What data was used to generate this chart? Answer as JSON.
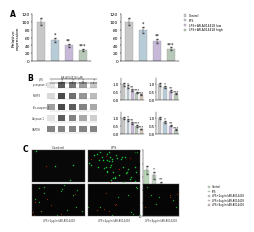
{
  "panel_A": {
    "left_chart": {
      "values": [
        100,
        55,
        40,
        28
      ],
      "colors": [
        "#c8c8c8",
        "#b8ccd8",
        "#c8b8d8",
        "#b8c8b8"
      ],
      "ylabel": "Relative expression",
      "ylim": [
        0,
        120
      ],
      "yticks": [
        0,
        20,
        40,
        60,
        80,
        100,
        120
      ],
      "legend": [
        "Control",
        "LPS",
        "LPS+AR-A014418 low",
        "LPS+AR-A014418 high"
      ]
    },
    "right_chart": {
      "values": [
        100,
        80,
        52,
        32
      ],
      "colors": [
        "#c8c8c8",
        "#b8ccd8",
        "#c8b8d8",
        "#b8c8b8"
      ],
      "ylim": [
        0,
        120
      ],
      "yticks": [
        0,
        20,
        40,
        60,
        80,
        100,
        120
      ]
    }
  },
  "panel_B": {
    "blot_labels": [
      "p-caspase-1",
      "NLRP3",
      "Pro-caspase-1",
      "Caspase-1",
      "GAPDH"
    ],
    "lane_header": [
      "LPS",
      "-",
      "+",
      "+",
      "+",
      "+"
    ],
    "lane_header2": [
      "AR-A014418 (uM)",
      "",
      "0",
      "1",
      "10",
      "t"
    ],
    "band_intensities": [
      [
        0.15,
        0.85,
        0.7,
        0.5,
        0.3
      ],
      [
        0.2,
        0.95,
        0.75,
        0.55,
        0.35
      ],
      [
        0.5,
        0.95,
        0.85,
        0.65,
        0.45
      ],
      [
        0.15,
        0.85,
        0.65,
        0.45,
        0.25
      ],
      [
        0.65,
        0.65,
        0.65,
        0.65,
        0.65
      ]
    ],
    "bar_charts": {
      "top_left": {
        "values": [
          1.0,
          0.85,
          0.65,
          0.45,
          0.32
        ],
        "colors": [
          "#c8c8c8",
          "#b8ccd8",
          "#c8b8d8",
          "#b8c8b8",
          "#d8c8b8"
        ],
        "ylim": [
          0,
          1.4
        ],
        "yticks": [
          0.0,
          0.5,
          1.0
        ]
      },
      "top_right": {
        "values": [
          1.0,
          0.8,
          0.58,
          0.38
        ],
        "colors": [
          "#c8c8c8",
          "#b8ccd8",
          "#c8b8d8",
          "#b8c8b8"
        ],
        "ylim": [
          0,
          1.4
        ],
        "yticks": [
          0.0,
          0.5,
          1.0
        ]
      },
      "bot_left": {
        "values": [
          1.0,
          0.88,
          0.7,
          0.5,
          0.3
        ],
        "colors": [
          "#c8c8c8",
          "#b8ccd8",
          "#c8b8d8",
          "#b8c8b8",
          "#d8c8b8"
        ],
        "ylim": [
          0,
          1.4
        ],
        "yticks": [
          0.0,
          0.5,
          1.0
        ]
      },
      "bot_right": {
        "values": [
          1.0,
          0.75,
          0.52,
          0.25
        ],
        "colors": [
          "#c8c8c8",
          "#b8ccd8",
          "#c8b8d8",
          "#b8c8b8"
        ],
        "ylim": [
          0,
          1.4
        ],
        "yticks": [
          0.0,
          0.5,
          1.0
        ]
      }
    }
  },
  "panel_C": {
    "fluor_top": {
      "control_green_dots": 5,
      "lps_green_dots": 40
    },
    "fluor_bot": {
      "n_dots_per": [
        8,
        12,
        10
      ]
    },
    "bar_values": [
      70,
      62,
      48,
      36,
      24
    ],
    "bar_colors": [
      "#b8d8b8",
      "#c8d8c8",
      "#c8c8d8",
      "#d8b8c8",
      "#c8b8b8"
    ],
    "ylim": [
      0,
      100
    ],
    "yticks": [
      0,
      20,
      40,
      60,
      80,
      100
    ],
    "legend": [
      "Control",
      "LPS",
      "LPS+2ug/ml AR-A014418",
      "LPS+4ug/ml AR-A014418",
      "LPS+8ug/ml AR-A014418"
    ]
  },
  "bg_color": "#ffffff"
}
